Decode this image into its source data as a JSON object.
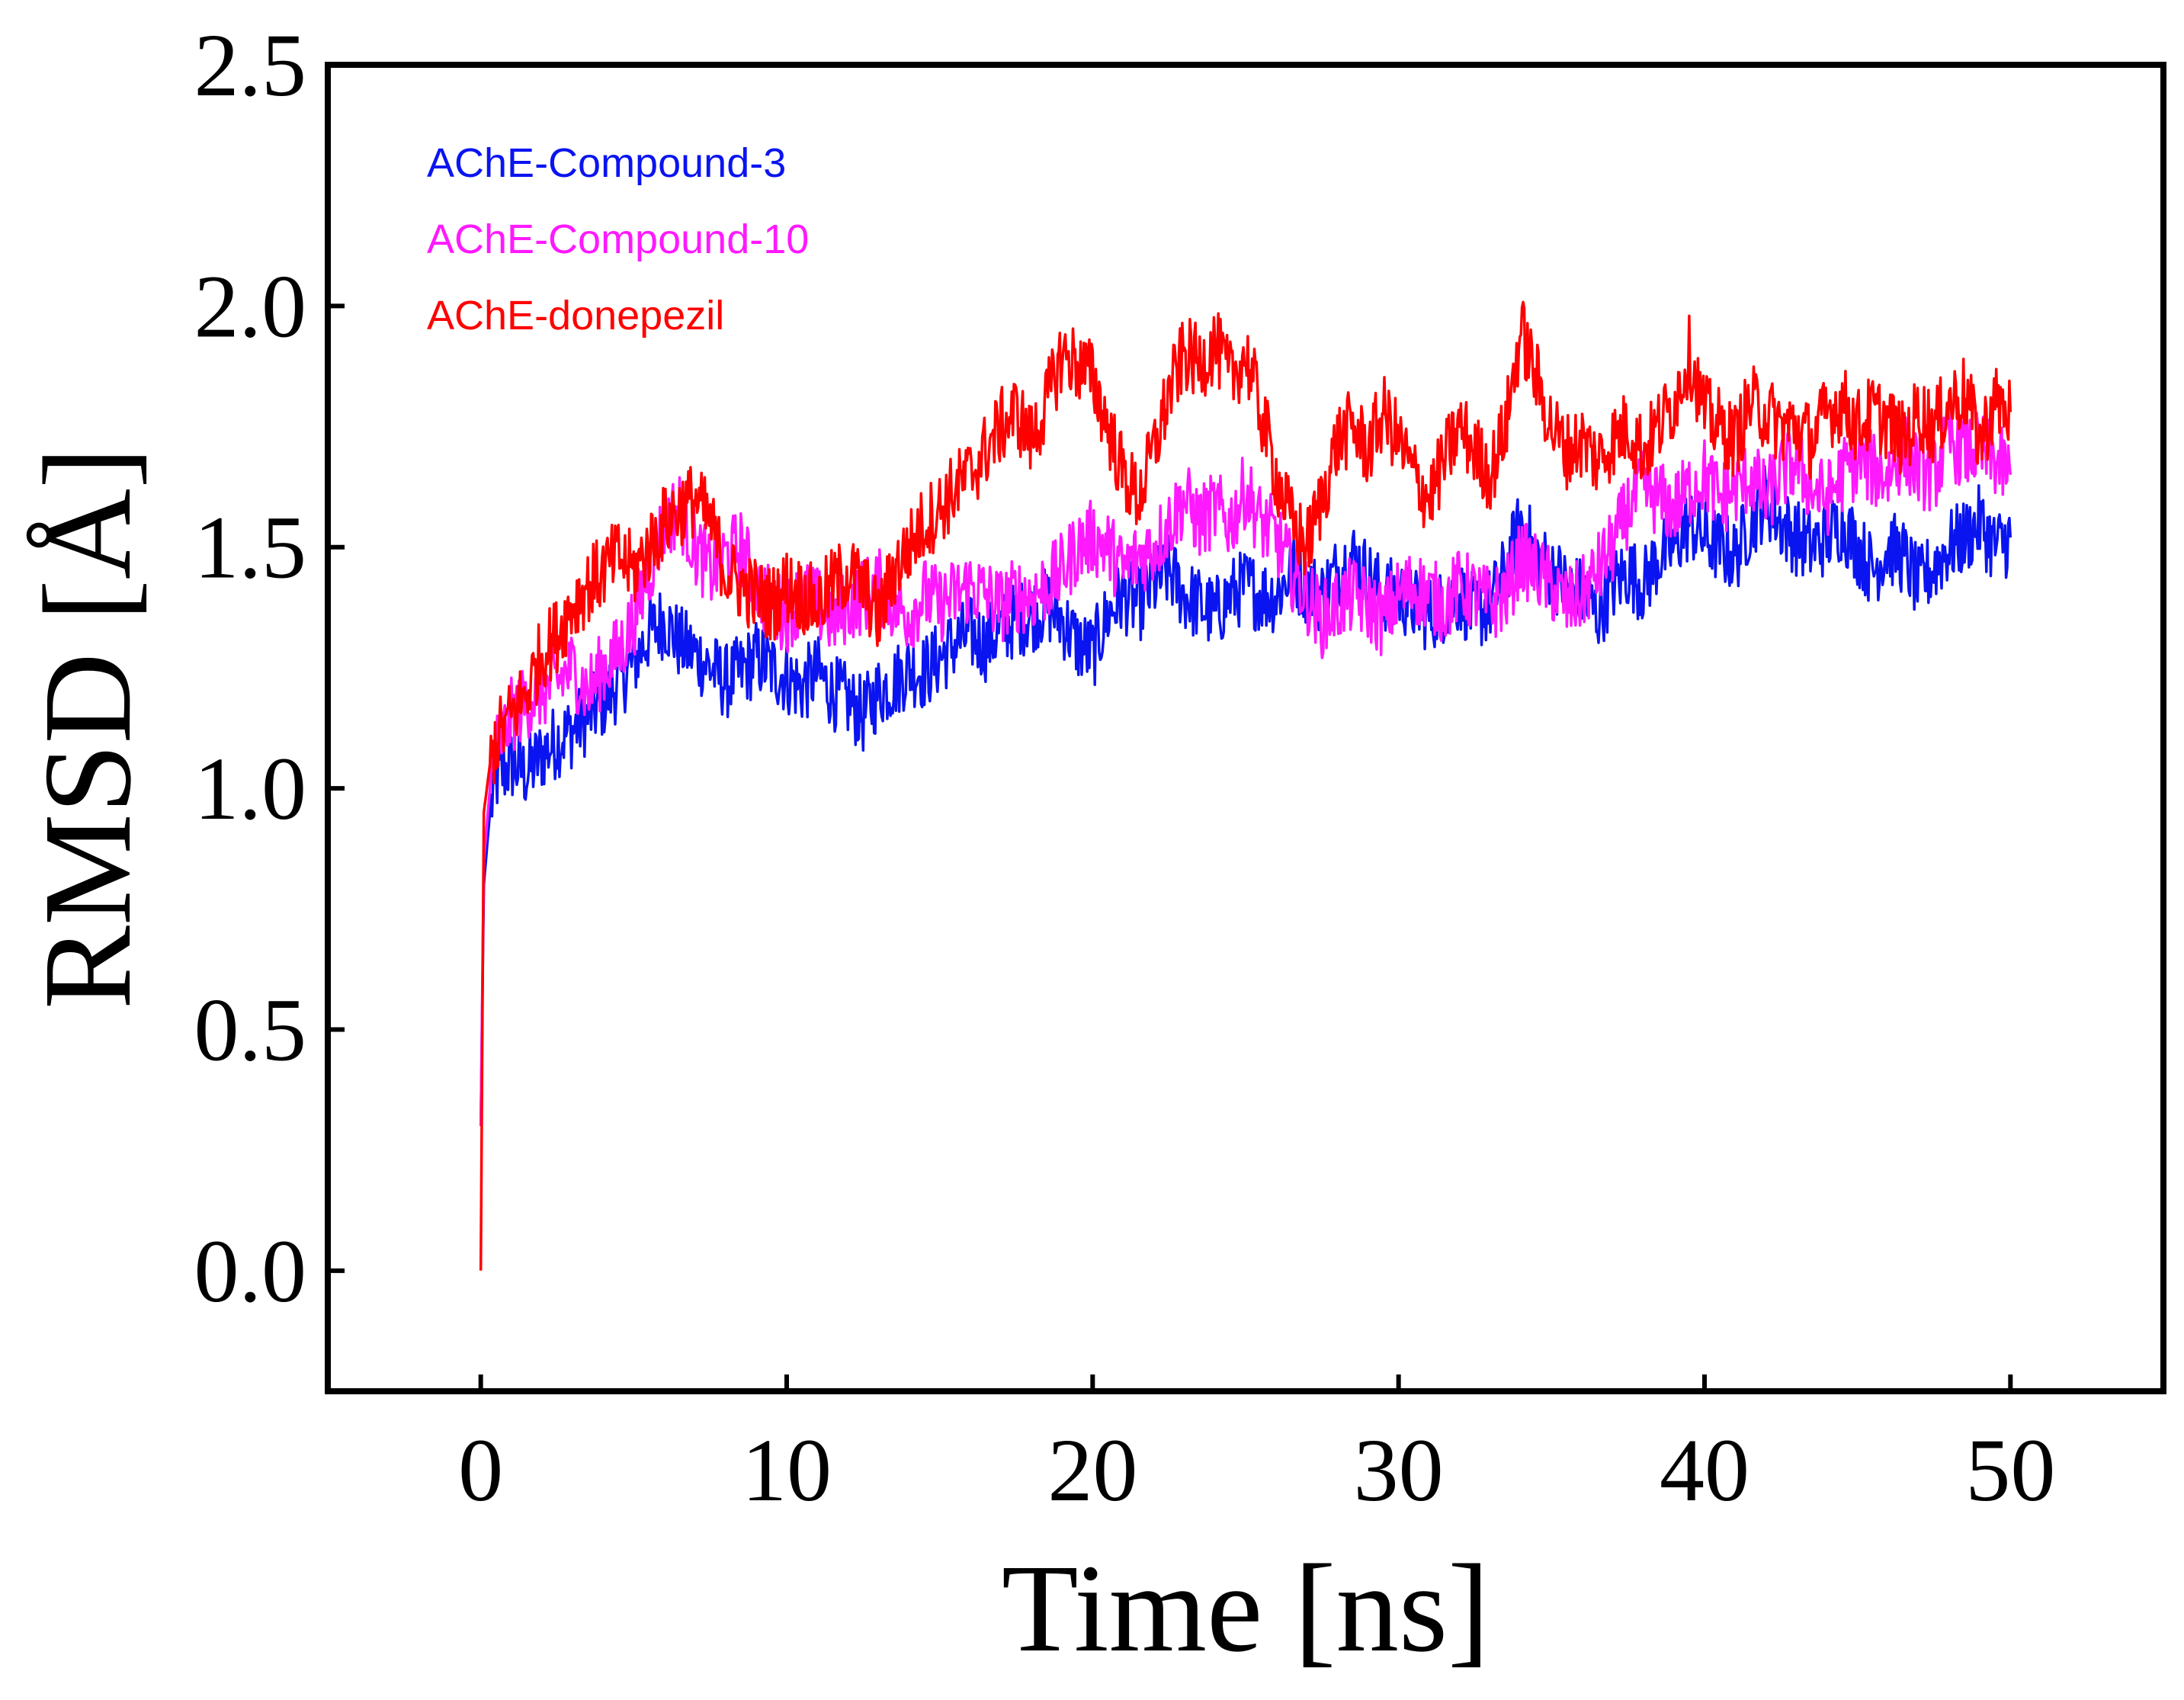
{
  "chart_data": {
    "type": "line",
    "xlabel": "Time [ns]",
    "ylabel": "RMSD [Å]",
    "xlim": [
      -5,
      55
    ],
    "ylim": [
      -0.25,
      2.5
    ],
    "x_ticks": [
      0,
      10,
      20,
      30,
      40,
      50
    ],
    "y_ticks": [
      0.0,
      0.5,
      1.0,
      1.5,
      2.0,
      2.5
    ],
    "x_tick_labels": [
      "0",
      "10",
      "20",
      "30",
      "40",
      "50"
    ],
    "y_tick_labels": [
      "0.0",
      "0.5",
      "1.0",
      "1.5",
      "2.0",
      "2.5"
    ],
    "grid": false,
    "legend_position": "top-left",
    "series": [
      {
        "name": "AChE-Compound-3",
        "color": "#0a14f0",
        "x": [
          0,
          0.1,
          0.3,
          0.5,
          1,
          1.5,
          2,
          2.5,
          3,
          3.5,
          4,
          4.5,
          5,
          5.5,
          6,
          6.5,
          7,
          7.5,
          8,
          8.5,
          9,
          9.5,
          10,
          10.5,
          11,
          11.5,
          12,
          12.5,
          13,
          13.5,
          14,
          14.5,
          15,
          15.5,
          16,
          16.5,
          17,
          17.5,
          18,
          18.5,
          19,
          19.5,
          20,
          20.5,
          21,
          21.5,
          22,
          22.5,
          23,
          23.5,
          24,
          24.5,
          25,
          25.5,
          26,
          26.5,
          27,
          27.5,
          28,
          28.5,
          29,
          29.5,
          30,
          30.5,
          31,
          31.5,
          32,
          32.5,
          33,
          33.5,
          34,
          34.5,
          35,
          35.5,
          36,
          36.5,
          37,
          37.5,
          38,
          38.5,
          39,
          39.5,
          40,
          40.5,
          41,
          41.5,
          42,
          42.5,
          43,
          43.5,
          44,
          44.5,
          45,
          45.5,
          46,
          46.5,
          47,
          47.5,
          48,
          48.5,
          49,
          49.5,
          50
        ],
        "y": [
          0.3,
          0.8,
          0.95,
          1.02,
          1.05,
          1.03,
          1.07,
          1.1,
          1.12,
          1.15,
          1.18,
          1.22,
          1.26,
          1.32,
          1.35,
          1.3,
          1.28,
          1.25,
          1.22,
          1.24,
          1.27,
          1.25,
          1.23,
          1.21,
          1.24,
          1.2,
          1.18,
          1.15,
          1.2,
          1.22,
          1.25,
          1.24,
          1.27,
          1.3,
          1.32,
          1.3,
          1.33,
          1.35,
          1.36,
          1.38,
          1.35,
          1.3,
          1.28,
          1.36,
          1.4,
          1.38,
          1.42,
          1.45,
          1.4,
          1.38,
          1.36,
          1.4,
          1.42,
          1.4,
          1.4,
          1.45,
          1.42,
          1.4,
          1.45,
          1.48,
          1.44,
          1.4,
          1.4,
          1.38,
          1.36,
          1.38,
          1.4,
          1.36,
          1.38,
          1.45,
          1.55,
          1.48,
          1.45,
          1.42,
          1.4,
          1.36,
          1.42,
          1.45,
          1.42,
          1.48,
          1.5,
          1.55,
          1.52,
          1.5,
          1.48,
          1.55,
          1.6,
          1.55,
          1.52,
          1.5,
          1.52,
          1.55,
          1.5,
          1.45,
          1.5,
          1.48,
          1.42,
          1.46,
          1.5,
          1.52,
          1.55,
          1.5,
          1.52
        ]
      },
      {
        "name": "AChE-Compound-10",
        "color": "#ff19ff",
        "x": [
          0,
          0.1,
          0.3,
          0.5,
          1,
          1.5,
          2,
          2.5,
          3,
          3.5,
          4,
          4.5,
          5,
          5.5,
          6,
          6.5,
          7,
          7.5,
          8,
          8.5,
          9,
          9.5,
          10,
          10.5,
          11,
          11.5,
          12,
          12.5,
          13,
          13.5,
          14,
          14.5,
          15,
          15.5,
          16,
          16.5,
          17,
          17.5,
          18,
          18.5,
          19,
          19.5,
          20,
          20.5,
          21,
          21.5,
          22,
          22.5,
          23,
          23.5,
          24,
          24.5,
          25,
          25.5,
          26,
          26.5,
          27,
          27.5,
          28,
          28.5,
          29,
          29.5,
          30,
          30.5,
          31,
          31.5,
          32,
          32.5,
          33,
          33.5,
          34,
          34.5,
          35,
          35.5,
          36,
          36.5,
          37,
          37.5,
          38,
          38.5,
          39,
          39.5,
          40,
          40.5,
          41,
          41.5,
          42,
          42.5,
          43,
          43.5,
          44,
          44.5,
          45,
          45.5,
          46,
          46.5,
          47,
          47.5,
          48,
          48.5,
          49,
          49.5,
          50
        ],
        "y": [
          0.3,
          0.85,
          1.0,
          1.08,
          1.15,
          1.18,
          1.2,
          1.22,
          1.25,
          1.2,
          1.25,
          1.28,
          1.35,
          1.45,
          1.55,
          1.58,
          1.5,
          1.45,
          1.48,
          1.5,
          1.42,
          1.38,
          1.36,
          1.4,
          1.38,
          1.35,
          1.38,
          1.4,
          1.42,
          1.38,
          1.36,
          1.4,
          1.38,
          1.4,
          1.42,
          1.4,
          1.38,
          1.4,
          1.4,
          1.42,
          1.45,
          1.5,
          1.52,
          1.5,
          1.45,
          1.48,
          1.5,
          1.55,
          1.6,
          1.55,
          1.58,
          1.55,
          1.62,
          1.55,
          1.52,
          1.45,
          1.4,
          1.35,
          1.38,
          1.4,
          1.38,
          1.35,
          1.4,
          1.42,
          1.4,
          1.38,
          1.42,
          1.4,
          1.38,
          1.4,
          1.48,
          1.45,
          1.42,
          1.38,
          1.4,
          1.45,
          1.5,
          1.58,
          1.62,
          1.6,
          1.58,
          1.62,
          1.65,
          1.6,
          1.62,
          1.65,
          1.6,
          1.65,
          1.68,
          1.62,
          1.6,
          1.65,
          1.68,
          1.66,
          1.65,
          1.7,
          1.66,
          1.65,
          1.72,
          1.7,
          1.7,
          1.68,
          1.65
        ]
      },
      {
        "name": "AChE-donepezil",
        "color": "#ff0000",
        "x": [
          0,
          0.1,
          0.3,
          0.5,
          1,
          1.5,
          2,
          2.5,
          3,
          3.5,
          4,
          4.5,
          5,
          5.5,
          6,
          6.5,
          7,
          7.5,
          8,
          8.5,
          9,
          9.5,
          10,
          10.5,
          11,
          11.5,
          12,
          12.5,
          13,
          13.5,
          14,
          14.5,
          15,
          15.5,
          16,
          16.5,
          17,
          17.5,
          18,
          18.5,
          19,
          19.5,
          20,
          20.5,
          21,
          21.5,
          22,
          22.5,
          23,
          23.5,
          24,
          24.5,
          25,
          25.5,
          26,
          26.5,
          27,
          27.5,
          28,
          28.5,
          29,
          29.5,
          30,
          30.5,
          31,
          31.5,
          32,
          32.5,
          33,
          33.5,
          34,
          34.5,
          35,
          35.5,
          36,
          36.5,
          37,
          37.5,
          38,
          38.5,
          39,
          39.5,
          40,
          40.5,
          41,
          41.5,
          42,
          42.5,
          43,
          43.5,
          44,
          44.5,
          45,
          45.5,
          46,
          46.5,
          47,
          47.5,
          48,
          48.5,
          49,
          49.5,
          50
        ],
        "y": [
          0.0,
          0.95,
          1.05,
          1.1,
          1.15,
          1.2,
          1.28,
          1.32,
          1.38,
          1.42,
          1.45,
          1.48,
          1.45,
          1.5,
          1.55,
          1.58,
          1.6,
          1.55,
          1.45,
          1.42,
          1.4,
          1.38,
          1.42,
          1.4,
          1.38,
          1.42,
          1.45,
          1.42,
          1.35,
          1.45,
          1.5,
          1.55,
          1.58,
          1.62,
          1.65,
          1.7,
          1.75,
          1.78,
          1.72,
          1.8,
          1.9,
          1.88,
          1.85,
          1.75,
          1.65,
          1.6,
          1.7,
          1.82,
          1.9,
          1.88,
          1.92,
          1.85,
          1.9,
          1.78,
          1.65,
          1.55,
          1.5,
          1.6,
          1.72,
          1.75,
          1.7,
          1.78,
          1.72,
          1.65,
          1.6,
          1.68,
          1.75,
          1.7,
          1.65,
          1.75,
          1.95,
          1.85,
          1.75,
          1.7,
          1.72,
          1.68,
          1.72,
          1.75,
          1.7,
          1.75,
          1.8,
          1.9,
          1.78,
          1.75,
          1.72,
          1.8,
          1.78,
          1.75,
          1.75,
          1.72,
          1.78,
          1.8,
          1.75,
          1.78,
          1.76,
          1.72,
          1.78,
          1.75,
          1.8,
          1.82,
          1.72,
          1.8,
          1.78
        ]
      }
    ]
  }
}
